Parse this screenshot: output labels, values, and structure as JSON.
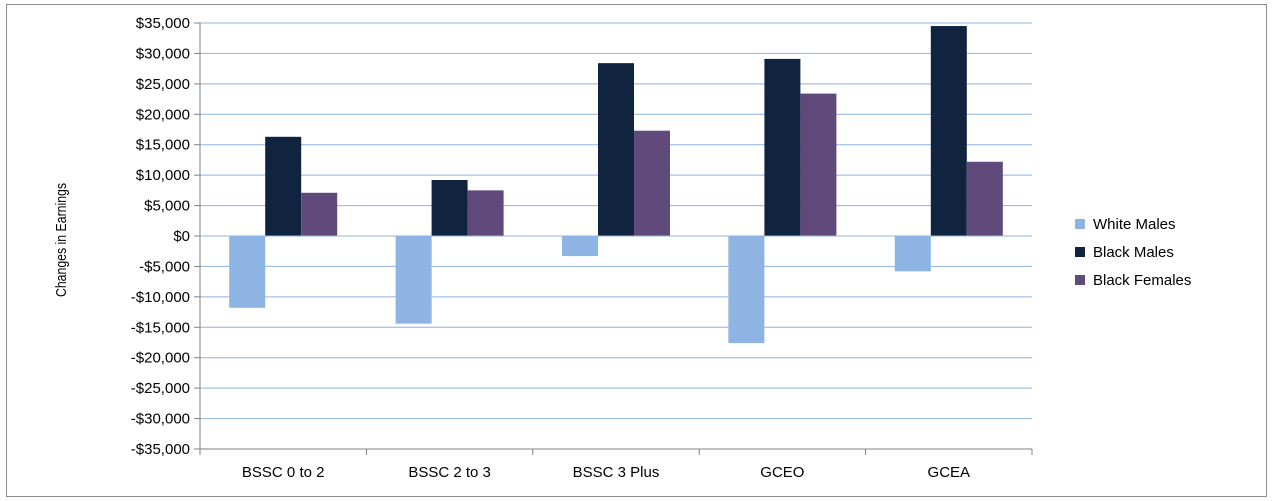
{
  "chart_data": {
    "type": "bar",
    "title": "",
    "xlabel": "",
    "ylabel": "Changes in Earnings",
    "ylim": [
      -35000,
      35000
    ],
    "ytick_step": 5000,
    "ytick_labels": [
      "$35,000",
      "$30,000",
      "$25,000",
      "$20,000",
      "$15,000",
      "$10,000",
      "$5,000",
      "$0",
      "-$5,000",
      "-$10,000",
      "-$15,000",
      "-$20,000",
      "-$25,000",
      "-$30,000",
      "-$35,000"
    ],
    "grid": true,
    "legend_position": "right",
    "categories": [
      "BSSC 0 to 2",
      "BSSC 2 to 3",
      "BSSC 3 Plus",
      "GCEO",
      "GCEA"
    ],
    "series": [
      {
        "name": "White Males",
        "color": "#8eb4e3",
        "values": [
          -11800,
          -14400,
          -3300,
          -17600,
          -5800
        ]
      },
      {
        "name": "Black Males",
        "color": "#10243f",
        "values": [
          16300,
          9200,
          28400,
          29100,
          34500
        ]
      },
      {
        "name": "Black Females",
        "color": "#604a7b",
        "values": [
          7100,
          7500,
          17300,
          23400,
          12200
        ]
      }
    ]
  }
}
